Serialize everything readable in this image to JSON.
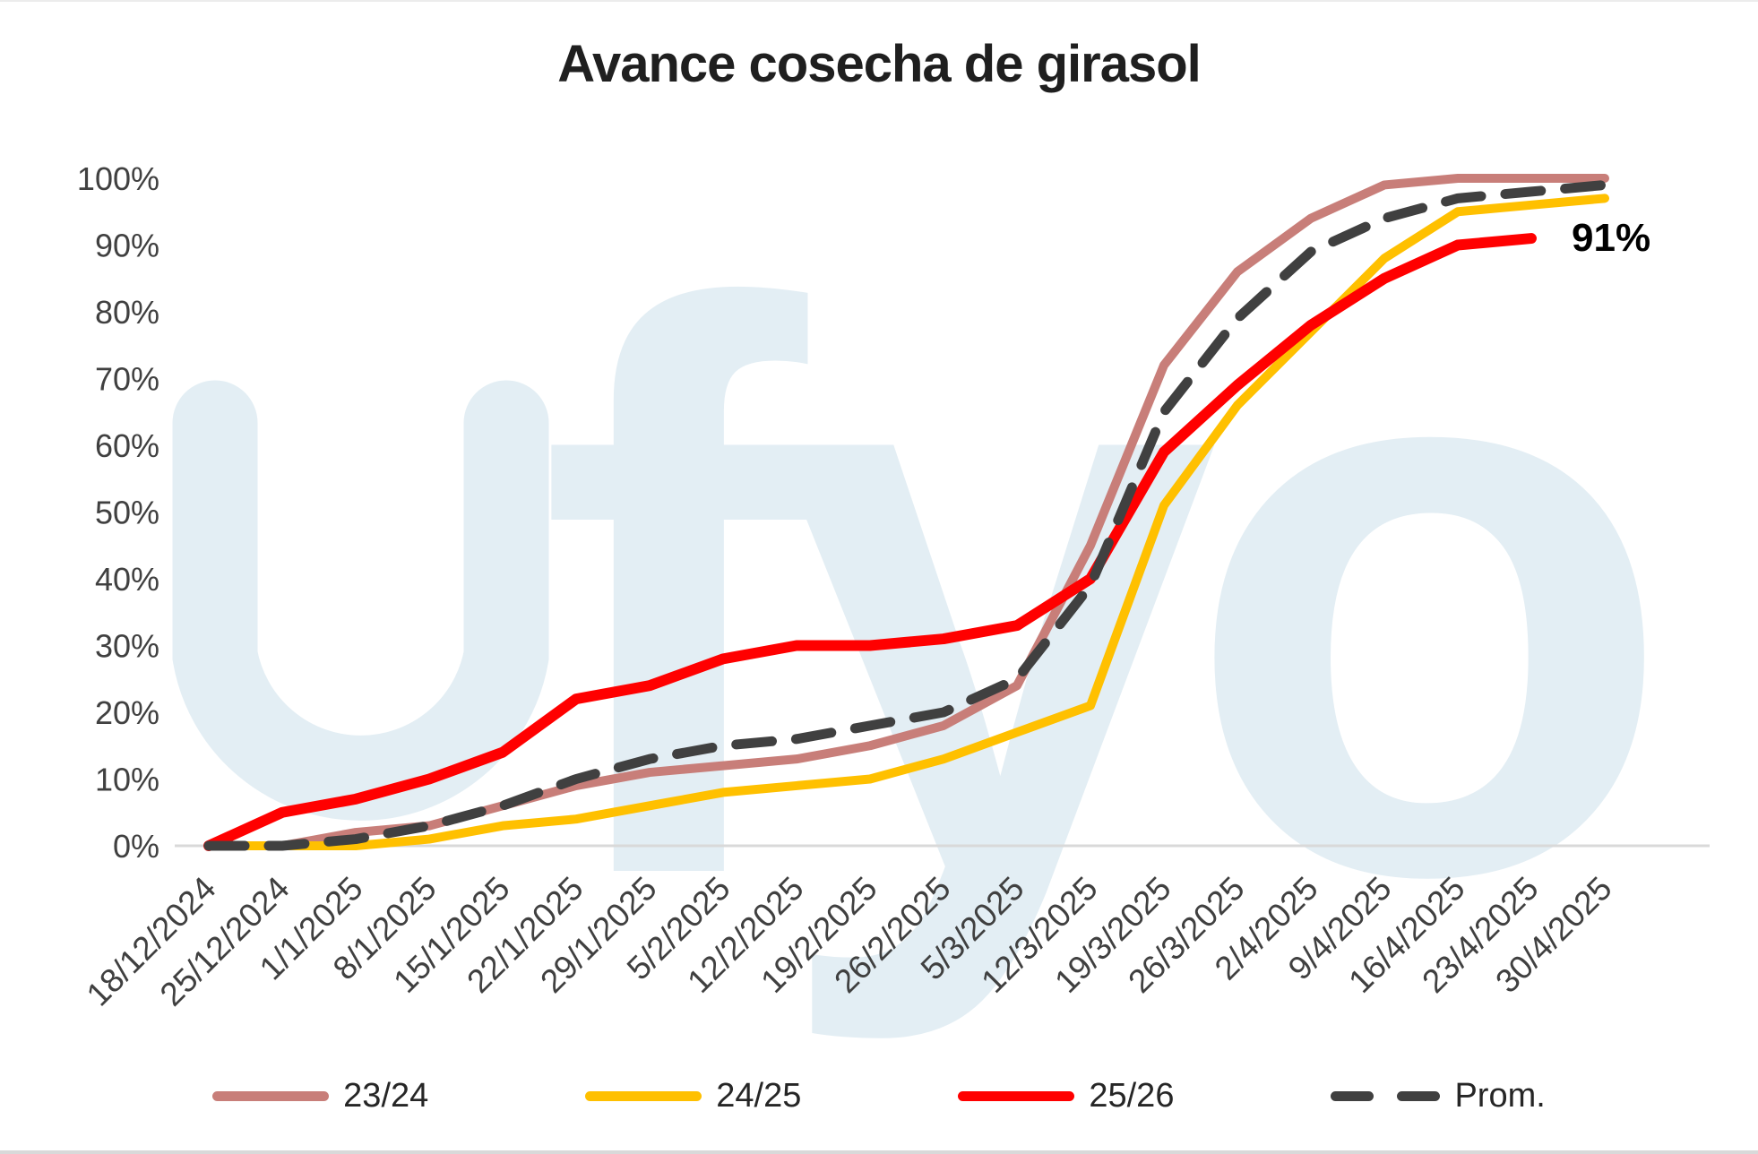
{
  "title": "Avance cosecha de girasol",
  "watermark_text": "fyo",
  "annotation": {
    "text": "91%",
    "series": "25/26"
  },
  "colors": {
    "series_23_24": "#c87e79",
    "series_24_25": "#ffc000",
    "series_25_26": "#ff0000",
    "series_prom": "#404040",
    "axis_line": "#d9d9d9",
    "axis_labels": "#404040",
    "title_text": "#1f1f1f",
    "watermark": "#e3eef4",
    "background": "#ffffff",
    "annotation_text": "#000000"
  },
  "chart_data": {
    "type": "line",
    "title": "Avance cosecha de girasol",
    "xlabel": "",
    "ylabel": "",
    "ylim": [
      0,
      100
    ],
    "grid": "none",
    "legend_position": "bottom",
    "y_ticks": [
      "0%",
      "10%",
      "20%",
      "30%",
      "40%",
      "50%",
      "60%",
      "70%",
      "80%",
      "90%",
      "100%"
    ],
    "categories": [
      "18/12/2024",
      "25/12/2024",
      "1/1/2025",
      "8/1/2025",
      "15/1/2025",
      "22/1/2025",
      "29/1/2025",
      "5/2/2025",
      "12/2/2025",
      "19/2/2025",
      "26/2/2025",
      "5/3/2025",
      "12/3/2025",
      "19/3/2025",
      "26/3/2025",
      "2/4/2025",
      "9/4/2025",
      "16/4/2025",
      "23/4/2025",
      "30/4/2025"
    ],
    "series": [
      {
        "name": "23/24",
        "color": "#c87e79",
        "style": "solid",
        "values": [
          0,
          0,
          2,
          3,
          6,
          9,
          11,
          12,
          13,
          15,
          18,
          24,
          45,
          72,
          86,
          94,
          99,
          100,
          100,
          100
        ]
      },
      {
        "name": "24/25",
        "color": "#ffc000",
        "style": "solid",
        "values": [
          0,
          0,
          0,
          1,
          3,
          4,
          6,
          8,
          9,
          10,
          13,
          17,
          21,
          51,
          66,
          77,
          88,
          95,
          96,
          97
        ]
      },
      {
        "name": "25/26",
        "color": "#ff0000",
        "style": "solid",
        "values": [
          0,
          5,
          7,
          10,
          14,
          22,
          24,
          28,
          30,
          30,
          31,
          33,
          40,
          59,
          69,
          78,
          85,
          90,
          91
        ]
      },
      {
        "name": "Prom.",
        "color": "#404040",
        "style": "dashed",
        "values": [
          0,
          0,
          1,
          3,
          6,
          10,
          13,
          15,
          16,
          18,
          20,
          25,
          39,
          65,
          79,
          89,
          94,
          97,
          98,
          99
        ]
      }
    ],
    "annotations": [
      {
        "text": "91%",
        "attached_to": "25/26",
        "at_category": "23/4/2025",
        "value": 91
      }
    ]
  }
}
